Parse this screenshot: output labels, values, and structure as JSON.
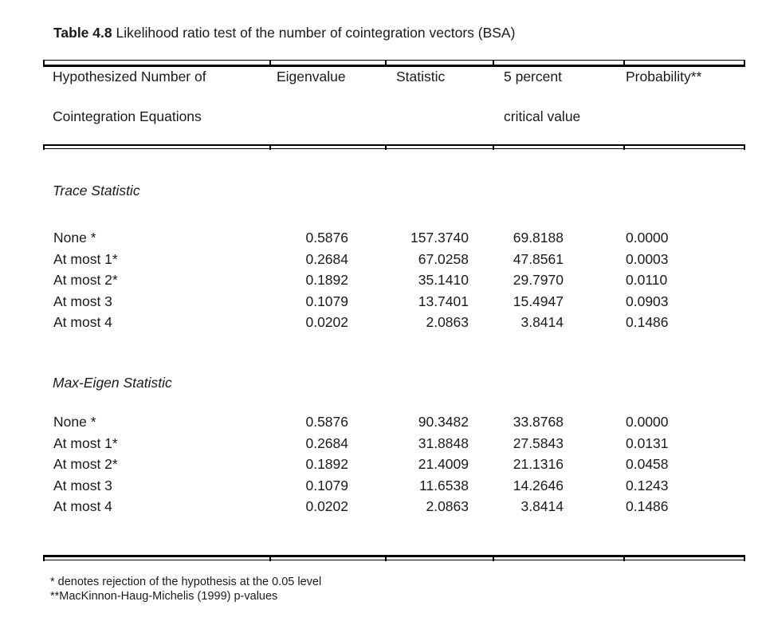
{
  "title": {
    "bold": "Table 4.8",
    "rest": " Likelihood ratio test of the number of cointegration vectors (BSA)"
  },
  "table": {
    "headers": {
      "col1_line1": "Hypothesized Number of",
      "col1_line2": "Cointegration Equations",
      "col2": "Eigenvalue",
      "col3": "Statistic",
      "col4_line1": "5 percent",
      "col4_line2": "critical value",
      "col5": "Probability**"
    },
    "sections": [
      {
        "title": "Trace Statistic",
        "rows": [
          {
            "hypothesis": "None *",
            "eigenvalue": "0.5876",
            "statistic": "157.3740",
            "critical_value": "69.8188",
            "probability": "0.0000"
          },
          {
            "hypothesis": "At most 1*",
            "eigenvalue": "0.2684",
            "statistic": "67.0258",
            "critical_value": "47.8561",
            "probability": "0.0003"
          },
          {
            "hypothesis": "At most 2*",
            "eigenvalue": "0.1892",
            "statistic": "35.1410",
            "critical_value": "29.7970",
            "probability": "0.0110"
          },
          {
            "hypothesis": "At most 3",
            "eigenvalue": "0.1079",
            "statistic": "13.7401",
            "critical_value": "15.4947",
            "probability": "0.0903"
          },
          {
            "hypothesis": "At most 4",
            "eigenvalue": "0.0202",
            "statistic": "2.0863",
            "critical_value": "3.8414",
            "probability": "0.1486"
          }
        ]
      },
      {
        "title": "Max-Eigen Statistic",
        "rows": [
          {
            "hypothesis": "None *",
            "eigenvalue": "0.5876",
            "statistic": "90.3482",
            "critical_value": "33.8768",
            "probability": "0.0000"
          },
          {
            "hypothesis": "At most 1*",
            "eigenvalue": "0.2684",
            "statistic": "31.8848",
            "critical_value": "27.5843",
            "probability": "0.0131"
          },
          {
            "hypothesis": "At most 2*",
            "eigenvalue": "0.1892",
            "statistic": "21.4009",
            "critical_value": "21.1316",
            "probability": "0.0458"
          },
          {
            "hypothesis": "At most 3",
            "eigenvalue": "0.1079",
            "statistic": "11.6538",
            "critical_value": "14.2646",
            "probability": "0.1243"
          },
          {
            "hypothesis": "At most 4",
            "eigenvalue": "0.0202",
            "statistic": "2.0863",
            "critical_value": "3.8414",
            "probability": "0.1486"
          }
        ]
      }
    ]
  },
  "footnotes": {
    "line1": "* denotes rejection of the hypothesis at the 0.05 level",
    "line2": "**MacKinnon-Haug-Michelis (1999) p-values"
  },
  "colors": {
    "background": "#ffffff",
    "text": "#1a1a1a",
    "rule": "#000000"
  }
}
